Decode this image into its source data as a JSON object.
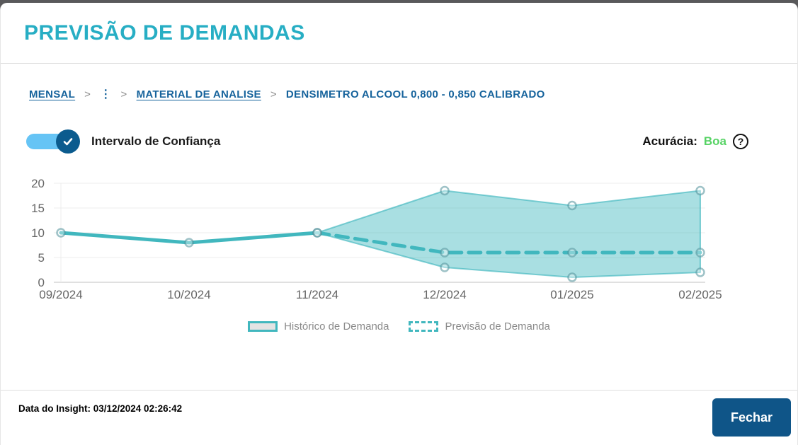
{
  "header": {
    "title": "PREVISÃO DE DEMANDAS"
  },
  "breadcrumb": {
    "separator": ">",
    "items": [
      {
        "label": "MENSAL",
        "underlined": true
      },
      {
        "label": "⋮",
        "underlined": false
      },
      {
        "label": "MATERIAL DE ANALISE",
        "underlined": true
      },
      {
        "label": "DENSIMETRO ALCOOL 0,800 - 0,850 CALIBRADO",
        "underlined": false
      }
    ]
  },
  "controls": {
    "toggle_label": "Intervalo de Confiança",
    "toggle_on": true,
    "accuracy_label": "Acurácia:",
    "accuracy_value": "Boa",
    "accuracy_color": "#57D365",
    "help_icon": "?"
  },
  "chart_data": {
    "type": "line",
    "x": [
      "09/2024",
      "10/2024",
      "11/2024",
      "12/2024",
      "01/2025",
      "02/2025"
    ],
    "series": [
      {
        "name": "Histórico de Demanda",
        "style": "solid",
        "values": [
          10,
          8,
          10,
          null,
          null,
          null
        ]
      },
      {
        "name": "Previsão de Demanda",
        "style": "dashed",
        "values": [
          null,
          null,
          10,
          6,
          6,
          6
        ]
      }
    ],
    "confidence_band": {
      "x_start_index": 2,
      "upper": [
        10,
        18.5,
        15.5,
        18.5
      ],
      "lower": [
        10,
        3,
        1,
        2
      ]
    },
    "ylim": [
      0,
      20
    ],
    "yticks": [
      0,
      5,
      10,
      15,
      20
    ],
    "xlabel": "",
    "ylabel": "",
    "grid": true,
    "legend_position": "bottom",
    "colors": {
      "line": "#41B7BE",
      "band": "rgba(65,183,190,0.45)"
    },
    "legend": [
      {
        "label": "Histórico de Demanda",
        "swatch": "solid"
      },
      {
        "label": "Previsão de Demanda",
        "swatch": "dashed"
      }
    ]
  },
  "footer": {
    "insight_text": "Data do Insight: 03/12/2024 02:26:42",
    "close_button": "Fechar"
  }
}
